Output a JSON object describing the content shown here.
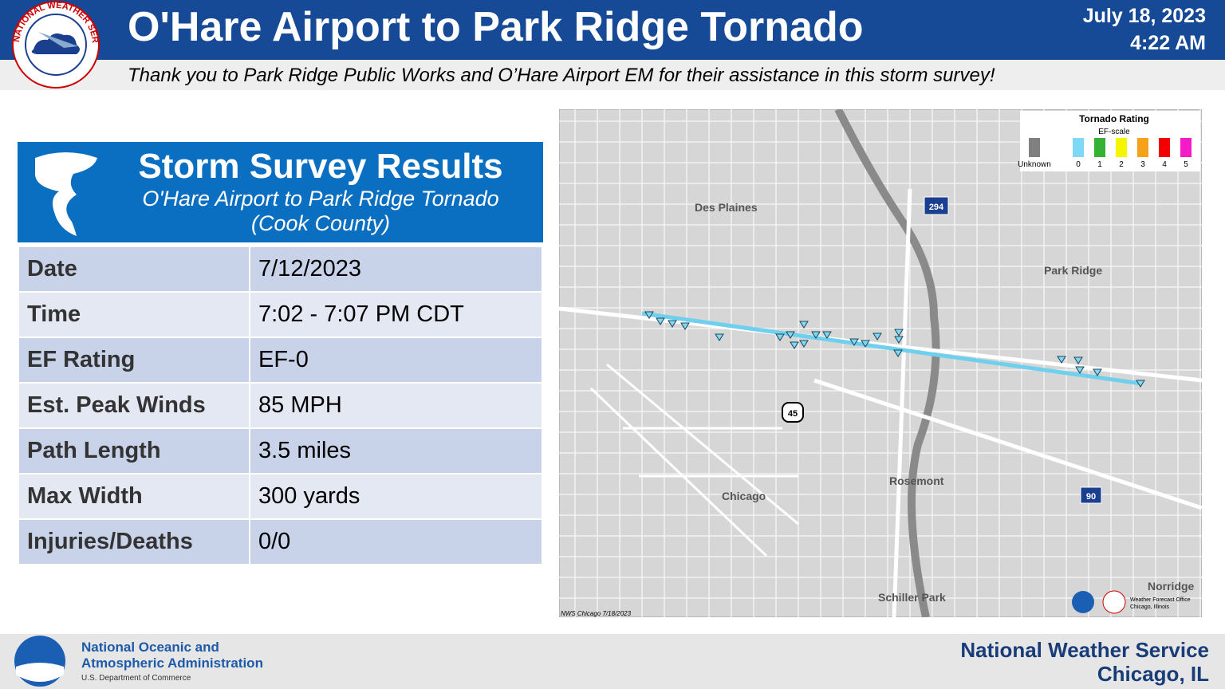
{
  "header": {
    "logo_text": "NATIONAL WEATHER SERVICE",
    "title": "O'Hare Airport to Park Ridge Tornado",
    "date": "July 18, 2023",
    "time": "4:22 AM",
    "subtitle": "Thank you to Park Ridge Public Works and O’Hare Airport EM for their assistance in this storm survey!"
  },
  "survey": {
    "title": "Storm Survey Results",
    "subtitle": [
      "O'Hare Airport to Park Ridge Tornado",
      "(Cook County)"
    ],
    "rows": [
      [
        "Date",
        "7/12/2023"
      ],
      [
        "Time",
        "7:02 - 7:07 PM CDT"
      ],
      [
        "EF Rating",
        "EF-0"
      ],
      [
        "Est. Peak Winds",
        "85 MPH"
      ],
      [
        "Path Length",
        "3.5 miles"
      ],
      [
        "Max Width",
        "300 yards"
      ],
      [
        "Injuries/Deaths",
        "0/0"
      ]
    ]
  },
  "map": {
    "legend": {
      "title": "Tornado Rating",
      "subtitle": "EF-scale",
      "items": [
        {
          "label": "Unknown",
          "color": "#808080"
        },
        {
          "label": "0",
          "color": "#7fd8f5"
        },
        {
          "label": "1",
          "color": "#33b233"
        },
        {
          "label": "2",
          "color": "#f5f500"
        },
        {
          "label": "3",
          "color": "#f5a21a"
        },
        {
          "label": "4",
          "color": "#f50000"
        },
        {
          "label": "5",
          "color": "#f51ac8"
        }
      ]
    },
    "places": [
      "Des Plaines",
      "Park Ridge",
      "Rosemont",
      "Chicago",
      "Schiller Park",
      "Norridge"
    ],
    "shields": [
      "294",
      "45",
      "90"
    ],
    "credit": "NWS Chicago 7/18/2023",
    "office": [
      "Weather Forecast Office",
      "Chicago, Illinois"
    ]
  },
  "footer": {
    "noaa": [
      "National Oceanic and",
      "Atmospheric Administration",
      "U.S. Department of Commerce"
    ],
    "nws": [
      "National Weather Service",
      "Chicago, IL"
    ]
  }
}
